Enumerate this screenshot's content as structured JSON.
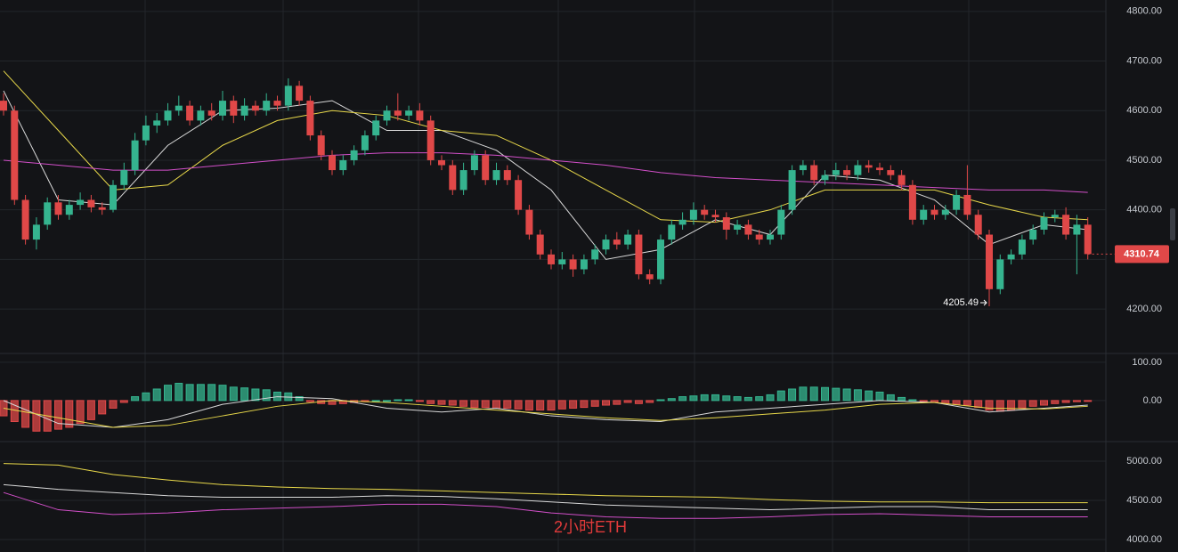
{
  "chart_data": [
    {
      "type": "candlestick",
      "up_color": "#35b48f",
      "down_color": "#e04848",
      "ylim": [
        4114,
        4823
      ],
      "yticks": [
        {
          "value": 4200,
          "label": "4200.00"
        },
        {
          "value": 4300,
          "label": "4300.00"
        },
        {
          "value": 4400,
          "label": "4400.00"
        },
        {
          "value": 4500,
          "label": "4500.00"
        },
        {
          "value": 4600,
          "label": "4600.00"
        },
        {
          "value": 4700,
          "label": "4700.00"
        },
        {
          "value": 4800,
          "label": "4800.00"
        }
      ],
      "last_price": 4310.74,
      "low_annotation": 4205.49,
      "candles": [
        [
          4620,
          4635,
          4590,
          4600
        ],
        [
          4600,
          4610,
          4410,
          4420
        ],
        [
          4420,
          4430,
          4330,
          4340
        ],
        [
          4340,
          4385,
          4320,
          4370
        ],
        [
          4370,
          4425,
          4360,
          4415
        ],
        [
          4415,
          4430,
          4380,
          4390
        ],
        [
          4390,
          4420,
          4380,
          4410
        ],
        [
          4410,
          4435,
          4400,
          4420
        ],
        [
          4420,
          4430,
          4395,
          4405
        ],
        [
          4405,
          4415,
          4390,
          4400
        ],
        [
          4400,
          4460,
          4395,
          4450
        ],
        [
          4450,
          4495,
          4440,
          4480
        ],
        [
          4480,
          4555,
          4470,
          4540
        ],
        [
          4540,
          4590,
          4530,
          4570
        ],
        [
          4570,
          4595,
          4555,
          4580
        ],
        [
          4580,
          4615,
          4570,
          4600
        ],
        [
          4600,
          4630,
          4590,
          4610
        ],
        [
          4610,
          4620,
          4570,
          4580
        ],
        [
          4580,
          4610,
          4570,
          4600
        ],
        [
          4600,
          4615,
          4580,
          4590
        ],
        [
          4590,
          4640,
          4580,
          4620
        ],
        [
          4620,
          4630,
          4575,
          4590
        ],
        [
          4590,
          4625,
          4580,
          4610
        ],
        [
          4610,
          4620,
          4590,
          4600
        ],
        [
          4600,
          4635,
          4590,
          4620
        ],
        [
          4620,
          4630,
          4600,
          4610
        ],
        [
          4610,
          4665,
          4600,
          4650
        ],
        [
          4650,
          4660,
          4610,
          4620
        ],
        [
          4620,
          4630,
          4540,
          4550
        ],
        [
          4550,
          4560,
          4500,
          4510
        ],
        [
          4510,
          4520,
          4470,
          4480
        ],
        [
          4480,
          4510,
          4470,
          4500
        ],
        [
          4500,
          4530,
          4490,
          4520
        ],
        [
          4520,
          4560,
          4510,
          4550
        ],
        [
          4550,
          4590,
          4540,
          4580
        ],
        [
          4580,
          4610,
          4570,
          4600
        ],
        [
          4600,
          4635,
          4580,
          4590
        ],
        [
          4590,
          4610,
          4580,
          4600
        ],
        [
          4600,
          4615,
          4570,
          4580
        ],
        [
          4580,
          4590,
          4490,
          4500
        ],
        [
          4500,
          4510,
          4480,
          4490
        ],
        [
          4490,
          4500,
          4430,
          4440
        ],
        [
          4440,
          4495,
          4430,
          4480
        ],
        [
          4480,
          4520,
          4470,
          4510
        ],
        [
          4510,
          4520,
          4450,
          4460
        ],
        [
          4460,
          4495,
          4450,
          4480
        ],
        [
          4480,
          4490,
          4450,
          4460
        ],
        [
          4460,
          4470,
          4390,
          4400
        ],
        [
          4400,
          4410,
          4340,
          4350
        ],
        [
          4350,
          4360,
          4300,
          4310
        ],
        [
          4310,
          4320,
          4280,
          4290
        ],
        [
          4290,
          4315,
          4280,
          4300
        ],
        [
          4300,
          4310,
          4265,
          4280
        ],
        [
          4280,
          4310,
          4270,
          4300
        ],
        [
          4300,
          4330,
          4290,
          4320
        ],
        [
          4320,
          4350,
          4310,
          4340
        ],
        [
          4340,
          4355,
          4320,
          4330
        ],
        [
          4330,
          4360,
          4320,
          4350
        ],
        [
          4350,
          4360,
          4260,
          4270
        ],
        [
          4270,
          4280,
          4250,
          4260
        ],
        [
          4260,
          4350,
          4250,
          4340
        ],
        [
          4340,
          4380,
          4330,
          4370
        ],
        [
          4370,
          4395,
          4360,
          4380
        ],
        [
          4380,
          4415,
          4370,
          4400
        ],
        [
          4400,
          4410,
          4380,
          4390
        ],
        [
          4390,
          4400,
          4375,
          4385
        ],
        [
          4385,
          4395,
          4340,
          4360
        ],
        [
          4360,
          4380,
          4350,
          4370
        ],
        [
          4370,
          4380,
          4340,
          4350
        ],
        [
          4350,
          4360,
          4330,
          4340
        ],
        [
          4340,
          4360,
          4330,
          4350
        ],
        [
          4350,
          4410,
          4340,
          4400
        ],
        [
          4400,
          4490,
          4390,
          4480
        ],
        [
          4480,
          4500,
          4470,
          4490
        ],
        [
          4490,
          4500,
          4450,
          4460
        ],
        [
          4460,
          4480,
          4450,
          4470
        ],
        [
          4470,
          4495,
          4460,
          4480
        ],
        [
          4480,
          4490,
          4460,
          4470
        ],
        [
          4470,
          4500,
          4460,
          4490
        ],
        [
          4490,
          4500,
          4475,
          4485
        ],
        [
          4485,
          4495,
          4470,
          4480
        ],
        [
          4480,
          4490,
          4460,
          4470
        ],
        [
          4470,
          4480,
          4440,
          4450
        ],
        [
          4450,
          4460,
          4370,
          4380
        ],
        [
          4380,
          4410,
          4370,
          4400
        ],
        [
          4400,
          4410,
          4380,
          4390
        ],
        [
          4390,
          4410,
          4380,
          4400
        ],
        [
          4400,
          4440,
          4390,
          4430
        ],
        [
          4430,
          4490,
          4380,
          4390
        ],
        [
          4390,
          4400,
          4340,
          4350
        ],
        [
          4350,
          4360,
          4205.49,
          4240
        ],
        [
          4240,
          4310,
          4230,
          4300
        ],
        [
          4300,
          4320,
          4290,
          4310
        ],
        [
          4310,
          4350,
          4300,
          4340
        ],
        [
          4340,
          4370,
          4330,
          4360
        ],
        [
          4360,
          4395,
          4350,
          4385
        ],
        [
          4385,
          4400,
          4375,
          4390
        ],
        [
          4390,
          4405,
          4340,
          4350
        ],
        [
          4350,
          4390,
          4270,
          4370
        ],
        [
          4370,
          4385,
          4300,
          4310.74
        ]
      ],
      "line_x": [
        0,
        5,
        10,
        15,
        20,
        25,
        30,
        35,
        40,
        45,
        50,
        55,
        60,
        65,
        70,
        75,
        80,
        85,
        90,
        95,
        99
      ],
      "series": [
        {
          "color": "#d9d9d9",
          "values": [
            4640,
            4420,
            4410,
            4530,
            4600,
            4605,
            4620,
            4560,
            4560,
            4520,
            4440,
            4300,
            4320,
            4380,
            4350,
            4470,
            4460,
            4420,
            4330,
            4370,
            4360
          ]
        },
        {
          "color": "#e8d84a",
          "values": [
            4680,
            4560,
            4440,
            4450,
            4530,
            4580,
            4600,
            4590,
            4560,
            4550,
            4500,
            4440,
            4380,
            4375,
            4400,
            4440,
            4440,
            4440,
            4410,
            4385,
            4380
          ]
        },
        {
          "color": "#d24fc9",
          "values": [
            4500,
            4490,
            4480,
            4480,
            4490,
            4500,
            4510,
            4515,
            4515,
            4510,
            4500,
            4490,
            4475,
            4465,
            4460,
            4455,
            4450,
            4445,
            4440,
            4440,
            4435
          ]
        }
      ]
    },
    {
      "type": "macd",
      "up_color": "#35b48f",
      "down_color": "#e04848",
      "ylim": [
        -105,
        116
      ],
      "yticks": [
        {
          "value": 0,
          "label": "0.00"
        },
        {
          "value": 100,
          "label": "100.00"
        }
      ],
      "values": [
        -40,
        -55,
        -70,
        -80,
        -80,
        -75,
        -70,
        -60,
        -50,
        -35,
        -20,
        -5,
        10,
        20,
        30,
        40,
        45,
        42,
        42,
        42,
        40,
        35,
        33,
        30,
        28,
        22,
        20,
        10,
        -3,
        -8,
        -10,
        -8,
        -5,
        -3,
        0,
        0,
        2,
        2,
        -2,
        -8,
        -10,
        -12,
        -15,
        -18,
        -18,
        -20,
        -20,
        -22,
        -25,
        -25,
        -25,
        -22,
        -20,
        -18,
        -15,
        -12,
        -10,
        -5,
        -8,
        -5,
        2,
        5,
        10,
        12,
        15,
        15,
        12,
        10,
        8,
        10,
        15,
        25,
        30,
        35,
        35,
        34,
        32,
        30,
        28,
        25,
        22,
        15,
        8,
        2,
        -3,
        -5,
        -8,
        -10,
        -12,
        -18,
        -25,
        -28,
        -25,
        -20,
        -15,
        -12,
        -8,
        -5,
        -3,
        -1
      ],
      "line_x": [
        0,
        5,
        10,
        15,
        20,
        25,
        30,
        35,
        40,
        45,
        50,
        55,
        60,
        65,
        70,
        75,
        80,
        85,
        90,
        95,
        99
      ],
      "series": [
        {
          "color": "#d9d9d9",
          "values": [
            0,
            -60,
            -70,
            -50,
            -10,
            10,
            5,
            -20,
            -30,
            -20,
            -40,
            -50,
            -55,
            -30,
            -20,
            -10,
            0,
            -5,
            -30,
            -20,
            -12
          ]
        },
        {
          "color": "#e8d84a",
          "values": [
            -20,
            -45,
            -70,
            -65,
            -40,
            -15,
            0,
            -5,
            -15,
            -25,
            -35,
            -45,
            -52,
            -45,
            -35,
            -25,
            -10,
            -5,
            -20,
            -22,
            -15
          ]
        }
      ]
    },
    {
      "type": "line",
      "watermark": "2小时ETH",
      "ylim": [
        3841,
        5227
      ],
      "yticks": [
        {
          "value": 4000,
          "label": "4000.00"
        },
        {
          "value": 4500,
          "label": "4500.00"
        },
        {
          "value": 5000,
          "label": "5000.00"
        }
      ],
      "line_x": [
        0,
        5,
        10,
        15,
        20,
        25,
        30,
        35,
        40,
        45,
        50,
        55,
        60,
        65,
        70,
        75,
        80,
        85,
        90,
        95,
        99
      ],
      "series": [
        {
          "color": "#e8d84a",
          "values": [
            4970,
            4950,
            4830,
            4760,
            4700,
            4670,
            4650,
            4640,
            4620,
            4600,
            4580,
            4560,
            4550,
            4540,
            4510,
            4490,
            4480,
            4480,
            4470,
            4470,
            4470
          ]
        },
        {
          "color": "#d9d9d9",
          "values": [
            4700,
            4640,
            4600,
            4560,
            4540,
            4540,
            4540,
            4560,
            4550,
            4520,
            4480,
            4440,
            4420,
            4400,
            4380,
            4400,
            4420,
            4420,
            4380,
            4380,
            4380
          ]
        },
        {
          "color": "#d24fc9",
          "values": [
            4600,
            4380,
            4320,
            4340,
            4380,
            4400,
            4420,
            4450,
            4450,
            4420,
            4340,
            4290,
            4270,
            4270,
            4290,
            4320,
            4330,
            4310,
            4290,
            4290,
            4290
          ]
        }
      ]
    }
  ]
}
